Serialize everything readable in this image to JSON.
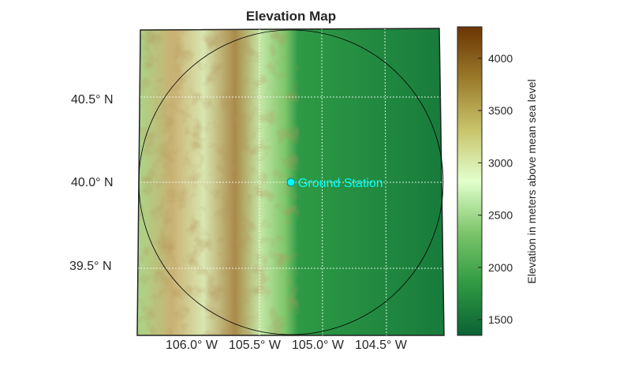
{
  "title": "Elevation Map",
  "latitude_ticks": [
    "40.5° N",
    "40.0° N",
    "39.5° N"
  ],
  "longitude_ticks": [
    "106.0° W",
    "105.5° W",
    "105.0° W",
    "104.5° W"
  ],
  "marker": {
    "label": "Ground Station",
    "color": "#00ffff",
    "lat": 40.0,
    "lon": -105.25
  },
  "colorbar": {
    "label": "Elevation in meters above mean sea level",
    "range": [
      1350,
      4300
    ],
    "ticks": [
      "1500",
      "2000",
      "2500",
      "3000",
      "3500",
      "4000"
    ],
    "colors": [
      "#0b6135",
      "#2f9a42",
      "#7cc56a",
      "#e2ffcc",
      "#c8c46a",
      "#9a7a2a",
      "#6b3504"
    ]
  }
}
